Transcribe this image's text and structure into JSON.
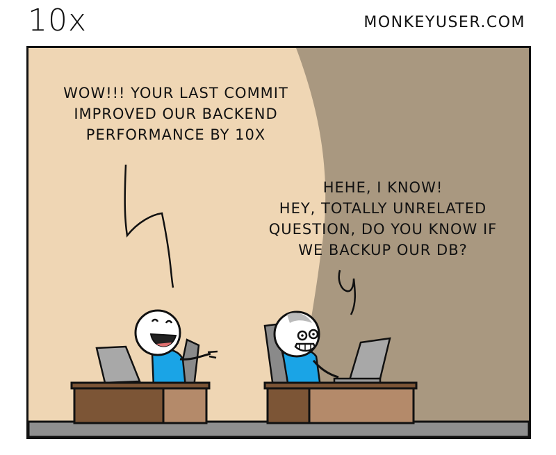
{
  "header": {
    "title": "10x",
    "site": "MONKEYUSER.COM"
  },
  "speech": {
    "boss": [
      "WOW!!! YOUR LAST COMMIT",
      "IMPROVED OUR BACKEND",
      "PERFORMANCE BY 10X"
    ],
    "dev": [
      "HEHE, I KNOW!",
      "HEY, TOTALLY UNRELATED",
      "QUESTION, DO YOU KNOW IF",
      "WE BACKUP OUR DB?"
    ]
  },
  "colors": {
    "wall_light": "#efd6b4",
    "wall_shadow": "#a99880",
    "floor": "#8f8f8f",
    "desk_dark": "#7c5536",
    "desk_light": "#b48a6a",
    "shirt": "#1aa4e6",
    "laptop": "#a8a8a8",
    "chair": "#8a8a8a"
  }
}
